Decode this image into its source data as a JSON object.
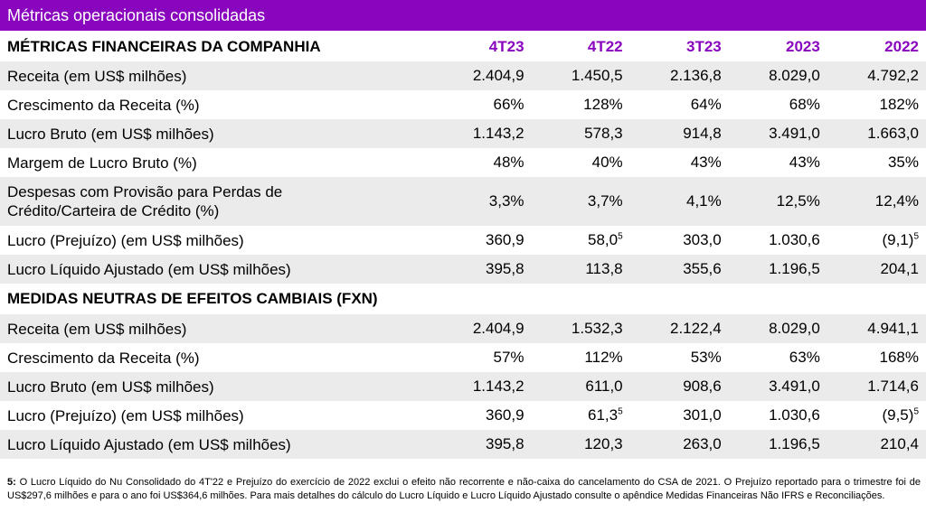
{
  "title": "Métricas operacionais consolidadas",
  "sections": [
    {
      "heading": "MÉTRICAS FINANCEIRAS DA COMPANHIA",
      "columns": [
        "4T23",
        "4T22",
        "3T23",
        "2023",
        "2022"
      ],
      "rows": [
        {
          "label": "Receita (em US$ milhões)",
          "values": [
            "2.404,9",
            "1.450,5",
            "2.136,8",
            "8.029,0",
            "4.792,2"
          ]
        },
        {
          "label": "Crescimento da Receita (%)",
          "values": [
            "66%",
            "128%",
            "64%",
            "68%",
            "182%"
          ]
        },
        {
          "label": "Lucro Bruto (em US$ milhões)",
          "values": [
            "1.143,2",
            "578,3",
            "914,8",
            "3.491,0",
            "1.663,0"
          ]
        },
        {
          "label": "Margem de Lucro Bruto (%)",
          "values": [
            "48%",
            "40%",
            "43%",
            "43%",
            "35%"
          ]
        },
        {
          "label_line1": "Despesas com Provisão para Perdas de",
          "label_line2": "Crédito/Carteira de Crédito (%)",
          "values": [
            "3,3%",
            "3,7%",
            "4,1%",
            "12,5%",
            "12,4%"
          ]
        },
        {
          "label": "Lucro (Prejuízo) (em US$ milhões)",
          "values": [
            "360,9",
            "58,0",
            "303,0",
            "1.030,6",
            "(9,1)"
          ],
          "sup": "5"
        },
        {
          "label": "Lucro Líquido Ajustado (em US$ milhões)",
          "values": [
            "395,8",
            "113,8",
            "355,6",
            "1.196,5",
            "204,1"
          ]
        }
      ]
    },
    {
      "heading": "MEDIDAS NEUTRAS DE EFEITOS CAMBIAIS (FXN)",
      "rows": [
        {
          "label": "Receita (em US$ milhões)",
          "values": [
            "2.404,9",
            "1.532,3",
            "2.122,4",
            "8.029,0",
            "4.941,1"
          ]
        },
        {
          "label": "Crescimento da Receita (%)",
          "values": [
            "57%",
            "112%",
            "53%",
            "63%",
            "168%"
          ]
        },
        {
          "label": "Lucro Bruto (em US$ milhões)",
          "values": [
            "1.143,2",
            "611,0",
            "908,6",
            "3.491,0",
            "1.714,6"
          ]
        },
        {
          "label": "Lucro (Prejuízo) (em US$ milhões)",
          "values": [
            "360,9",
            "61,3",
            "301,0",
            "1.030,6",
            "(9,5)"
          ],
          "sup": "5"
        },
        {
          "label": "Lucro Líquido Ajustado (em US$ milhões)",
          "values": [
            "395,8",
            "120,3",
            "263,0",
            "1.196,5",
            "210,4"
          ]
        }
      ]
    }
  ],
  "footnote": {
    "marker": "5:",
    "text": " O Lucro Líquido do Nu Consolidado do 4T'22 e Prejuízo do exercício de 2022 exclui o efeito  não recorrente e não-caixa do cancelamento do CSA de 2021. O Prejuízo reportado para o trimestre foi de US$297,6 milhões e para o ano foi US$364,6 milhões. Para mais detalhes do cálculo do Lucro Líquido e Lucro Líquido Ajustado consulte o apêndice Medidas Financeiras Não IFRS e Reconciliações."
  },
  "colors": {
    "accent": "#8a05be",
    "row_alt": "#ebebeb"
  }
}
